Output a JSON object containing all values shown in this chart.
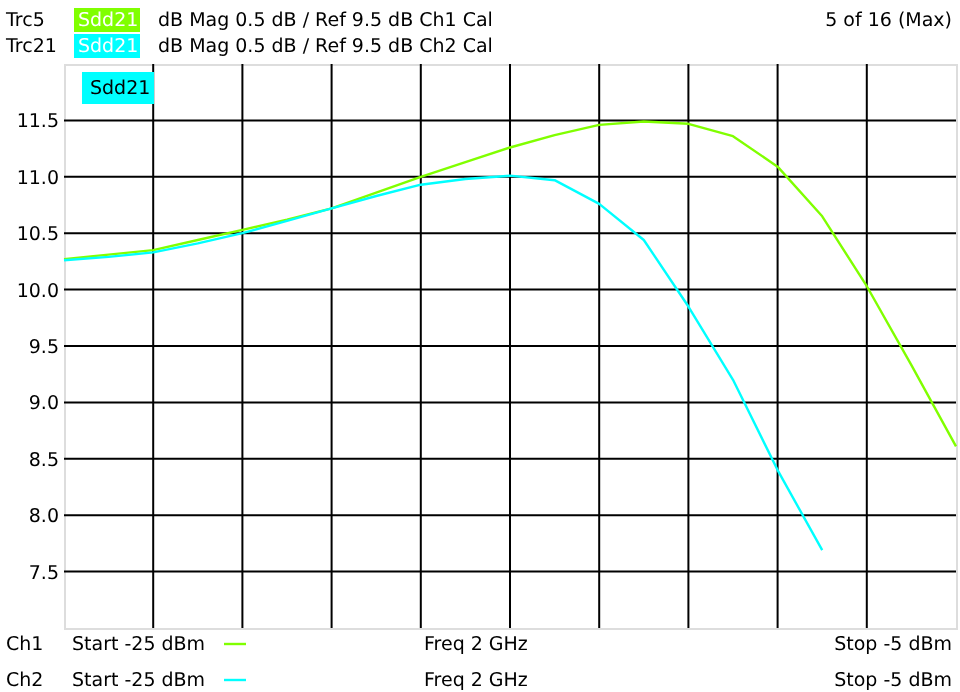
{
  "chart_data": {
    "type": "line",
    "categories": [
      null,
      null,
      null,
      null,
      null,
      null,
      null,
      null,
      null,
      null,
      null,
      null,
      null,
      null,
      null,
      null,
      null,
      null,
      null,
      null,
      null
    ],
    "series": [
      {
        "name": "Sdd21",
        "color": "#80ff00",
        "values": [
          10.27,
          10.31,
          10.35,
          10.44,
          10.53,
          10.62,
          10.72,
          10.86,
          11.0,
          11.13,
          11.26,
          11.37,
          11.46,
          11.49,
          11.47,
          11.36,
          11.09,
          10.65,
          10.03,
          9.33,
          8.61
        ]
      },
      {
        "name": "Sdd21",
        "color": "#00ffff",
        "values": [
          10.26,
          10.29,
          10.33,
          10.41,
          10.5,
          10.61,
          10.72,
          10.83,
          10.93,
          10.98,
          11.01,
          10.97,
          10.76,
          10.44,
          9.85,
          9.2,
          8.4,
          7.69,
          null,
          null,
          null
        ]
      }
    ],
    "ylim": [
      7,
      12
    ],
    "yticks": [
      7.5,
      {
        "value": 8,
        "label": "8.0"
      },
      8.5,
      {
        "value": 9,
        "label": "9.0"
      },
      9.5,
      {
        "value": 10,
        "label": "10.0"
      },
      10.5,
      {
        "value": 11,
        "label": "11.0"
      },
      11.5
    ],
    "tick_labels": "y",
    "grid": true,
    "legend": "top",
    "annotations": [
      "Trc5",
      "dB Mag  0.5 dB /  Ref 9.5 dB   Ch1  Cal",
      "Trc21",
      "dB Mag  0.5 dB /  Ref 9.5 dB   Ch2  Cal",
      "5 of 16 (Max)",
      "Sdd21",
      "Ch1",
      "Start  -25 dBm",
      "Freq  2 GHz",
      "Stop  -5 dBm",
      "Ch2",
      "Start  -25 dBm",
      "Freq  2 GHz",
      "Stop  -5 dBm"
    ]
  }
}
